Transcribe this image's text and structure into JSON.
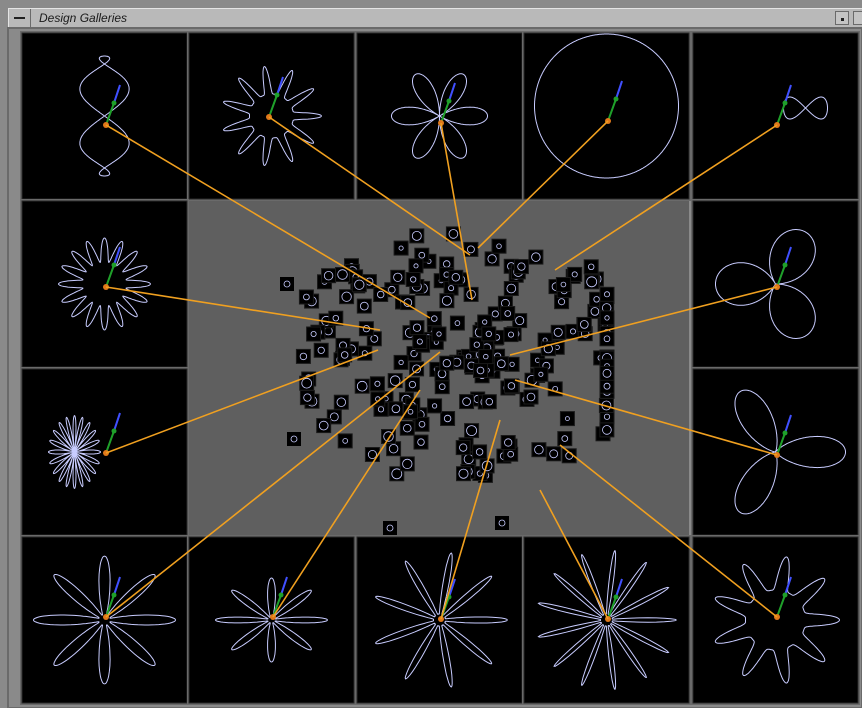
{
  "window": {
    "title": "Design Galleries"
  },
  "colors": {
    "background": "#8a8a8a",
    "panel_border": "#6a6a6a",
    "panel_fill": "#000000",
    "center_fill": "#5f5f5f",
    "leader_line": "#f0a020",
    "curve": "#c8ccff",
    "arm_blue": "#4050ff",
    "arm_green": "#1fa02a",
    "joint": "#e0781a"
  },
  "gallery": {
    "thumbnails": [
      {
        "id": "t1",
        "shape": "spirograph-loop"
      },
      {
        "id": "t2",
        "shape": "star-spiky"
      },
      {
        "id": "t3",
        "shape": "flower-petals"
      },
      {
        "id": "t4",
        "shape": "large-arc"
      },
      {
        "id": "t5",
        "shape": "small-loop-right"
      },
      {
        "id": "t6",
        "shape": "rosette-ring"
      },
      {
        "id": "t7",
        "shape": "propeller"
      },
      {
        "id": "t8",
        "shape": "spiral-coil"
      },
      {
        "id": "t9",
        "shape": "three-lobe"
      },
      {
        "id": "t10",
        "shape": "star-ellipse"
      },
      {
        "id": "t11",
        "shape": "daisy"
      },
      {
        "id": "t12",
        "shape": "starburst"
      },
      {
        "id": "t13",
        "shape": "starburst-dense"
      },
      {
        "id": "t14",
        "shape": "star-nine"
      }
    ]
  }
}
